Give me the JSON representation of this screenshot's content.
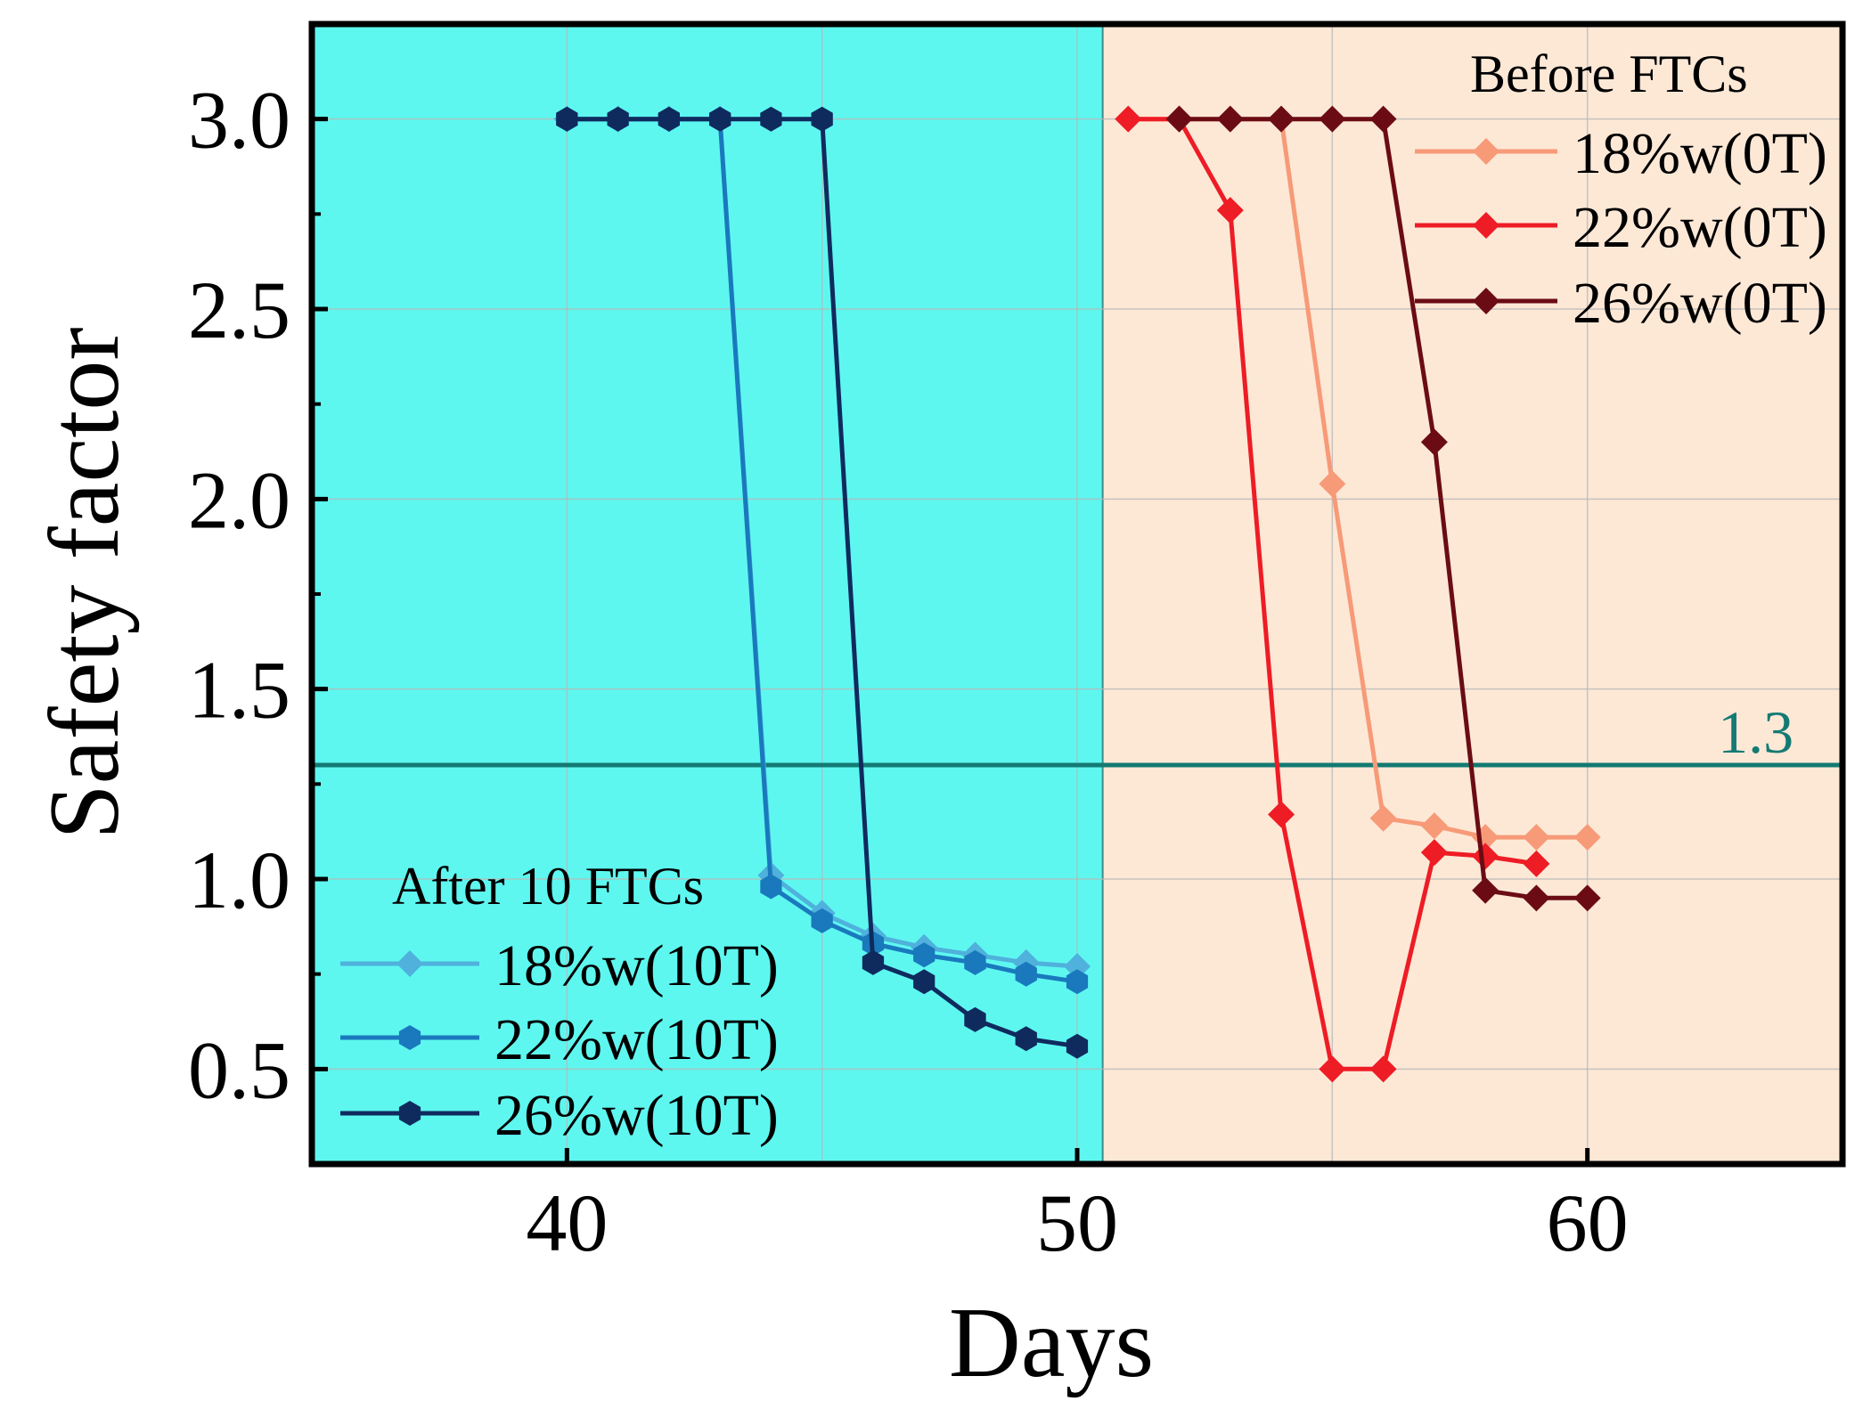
{
  "chart_data": {
    "type": "line",
    "xlabel": "Days",
    "ylabel": "Safety factor",
    "xlim": [
      35,
      65
    ],
    "ylim": [
      0.25,
      3.25
    ],
    "xticks": [
      40,
      50,
      60
    ],
    "xtick_labels": [
      "40",
      "50",
      "60"
    ],
    "yticks": [
      0.5,
      1.0,
      1.5,
      2.0,
      2.5,
      3.0
    ],
    "ytick_labels": [
      "0.5",
      "1.0",
      "1.5",
      "2.0",
      "2.5",
      "3.0"
    ],
    "grid": true,
    "regions": [
      {
        "name": "after-ftc-region",
        "x_from": 35,
        "x_to": 50.5,
        "color": "#5ef7f0"
      },
      {
        "name": "before-ftc-region",
        "x_from": 50.5,
        "x_to": 65,
        "color": "#fde8d6"
      }
    ],
    "reference_line": {
      "y": 1.3,
      "label": "1.3",
      "color": "#137a73"
    },
    "legend_groups": [
      {
        "title": "After 10 FTCs",
        "position": "bottom-left",
        "entries": [
          "18%w(10T)",
          "22%w(10T)",
          "26%w(10T)"
        ]
      },
      {
        "title": "Before FTCs",
        "position": "top-right",
        "entries": [
          "18%w(0T)",
          "22%w(0T)",
          "26%w(0T)"
        ]
      }
    ],
    "series": [
      {
        "name": "18%w(10T)",
        "color": "#4fb1dc",
        "marker": "diamond",
        "x": [
          40,
          41,
          42,
          43,
          44,
          45,
          46,
          47,
          48,
          49,
          50
        ],
        "y": [
          3.0,
          3.0,
          3.0,
          3.0,
          1.01,
          0.91,
          0.85,
          0.82,
          0.8,
          0.78,
          0.77
        ]
      },
      {
        "name": "22%w(10T)",
        "color": "#1a79bd",
        "marker": "hexagon",
        "x": [
          40,
          41,
          42,
          43,
          44,
          45,
          46,
          47,
          48,
          49,
          50
        ],
        "y": [
          3.0,
          3.0,
          3.0,
          3.0,
          0.98,
          0.89,
          0.83,
          0.8,
          0.78,
          0.75,
          0.73
        ]
      },
      {
        "name": "26%w(10T)",
        "color": "#0f2b5e",
        "marker": "hexagon",
        "x": [
          40,
          41,
          42,
          43,
          44,
          45,
          46,
          47,
          48,
          49,
          50
        ],
        "y": [
          3.0,
          3.0,
          3.0,
          3.0,
          3.0,
          3.0,
          0.78,
          0.73,
          0.63,
          0.58,
          0.56
        ]
      },
      {
        "name": "18%w(0T)",
        "color": "#f79a78",
        "marker": "diamond",
        "x": [
          51,
          52,
          53,
          54,
          55,
          56,
          57,
          58,
          59,
          60
        ],
        "y": [
          3.0,
          3.0,
          3.0,
          3.0,
          2.04,
          1.16,
          1.14,
          1.11,
          1.11,
          1.11
        ]
      },
      {
        "name": "22%w(0T)",
        "color": "#ee1c25",
        "marker": "diamond",
        "x": [
          51,
          52,
          53,
          54,
          55,
          56,
          57,
          58,
          59
        ],
        "y": [
          3.0,
          3.0,
          2.76,
          1.17,
          0.5,
          0.5,
          1.07,
          1.06,
          1.04
        ]
      },
      {
        "name": "26%w(0T)",
        "color": "#6b0c14",
        "marker": "diamond",
        "x": [
          52,
          53,
          54,
          55,
          56,
          57,
          58,
          59,
          60
        ],
        "y": [
          3.0,
          3.0,
          3.0,
          3.0,
          3.0,
          2.15,
          0.97,
          0.95,
          0.95
        ]
      }
    ]
  }
}
